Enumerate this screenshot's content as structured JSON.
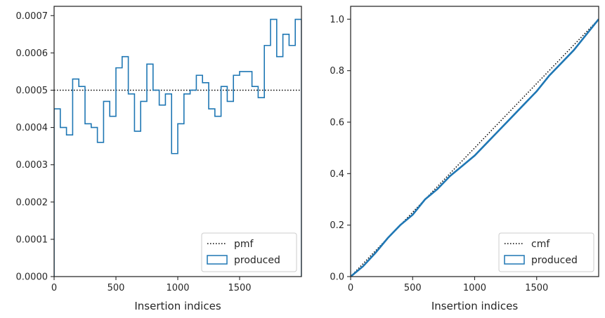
{
  "chart_data": [
    {
      "type": "step",
      "xlabel": "Insertion indices",
      "ylabel": "",
      "xlim": [
        0,
        2000
      ],
      "ylim": [
        0,
        0.000725
      ],
      "xticks": [
        0,
        500,
        1000,
        1500
      ],
      "xtick_labels": [
        "0",
        "500",
        "1000",
        "1500"
      ],
      "yticks": [
        0,
        0.0001,
        0.0002,
        0.0003,
        0.0004,
        0.0005,
        0.0006,
        0.0007
      ],
      "ytick_labels": [
        "0.0000",
        "0.0001",
        "0.0002",
        "0.0003",
        "0.0004",
        "0.0005",
        "0.0006",
        "0.0007"
      ],
      "reference_line": {
        "name": "pmf",
        "value": 0.0005,
        "style": "dotted",
        "color": "#000000"
      },
      "series": [
        {
          "name": "produced",
          "color": "#1f77b4",
          "bin_edges": [
            0,
            50,
            100,
            150,
            200,
            250,
            300,
            350,
            400,
            450,
            500,
            550,
            600,
            650,
            700,
            750,
            800,
            850,
            900,
            950,
            1000,
            1050,
            1100,
            1150,
            1200,
            1250,
            1300,
            1350,
            1400,
            1450,
            1500,
            1550,
            1600,
            1650,
            1700,
            1750,
            1800,
            1850,
            1900,
            1950,
            2000
          ],
          "values": [
            0.00045,
            0.0004,
            0.00038,
            0.00053,
            0.00051,
            0.00041,
            0.0004,
            0.00036,
            0.00047,
            0.00043,
            0.00056,
            0.00059,
            0.00049,
            0.00039,
            0.00047,
            0.00057,
            0.0005,
            0.00046,
            0.00049,
            0.00033,
            0.00041,
            0.00049,
            0.0005,
            0.00054,
            0.00052,
            0.00045,
            0.00043,
            0.00051,
            0.00047,
            0.00054,
            0.00055,
            0.00055,
            0.00051,
            0.00048,
            0.00062,
            0.00069,
            0.00059,
            0.00065,
            0.00062,
            0.00069
          ]
        }
      ],
      "legend": {
        "position": "lower-right",
        "entries": [
          "pmf",
          "produced"
        ]
      },
      "grid": false
    },
    {
      "type": "step",
      "xlabel": "Insertion indices",
      "ylabel": "",
      "xlim": [
        0,
        2000
      ],
      "ylim": [
        0,
        1.05
      ],
      "xticks": [
        0,
        500,
        1000,
        1500
      ],
      "xtick_labels": [
        "0",
        "500",
        "1000",
        "1500"
      ],
      "yticks": [
        0,
        0.2,
        0.4,
        0.6,
        0.8,
        1.0
      ],
      "ytick_labels": [
        "0.0",
        "0.2",
        "0.4",
        "0.6",
        "0.8",
        "1.0"
      ],
      "reference_line": {
        "name": "cmf",
        "from": [
          0,
          0
        ],
        "to": [
          2000,
          1.0
        ],
        "style": "dotted",
        "color": "#000000"
      },
      "series": [
        {
          "name": "produced",
          "color": "#1f77b4",
          "x": [
            0,
            100,
            200,
            300,
            400,
            500,
            600,
            700,
            800,
            900,
            1000,
            1100,
            1200,
            1300,
            1400,
            1500,
            1600,
            1700,
            1800,
            1900,
            2000
          ],
          "y": [
            0,
            0.04,
            0.092,
            0.15,
            0.2,
            0.24,
            0.3,
            0.34,
            0.39,
            0.43,
            0.47,
            0.52,
            0.57,
            0.62,
            0.67,
            0.72,
            0.78,
            0.83,
            0.88,
            0.94,
            1.0
          ]
        }
      ],
      "legend": {
        "position": "lower-right",
        "entries": [
          "cmf",
          "produced"
        ]
      },
      "grid": false
    }
  ]
}
